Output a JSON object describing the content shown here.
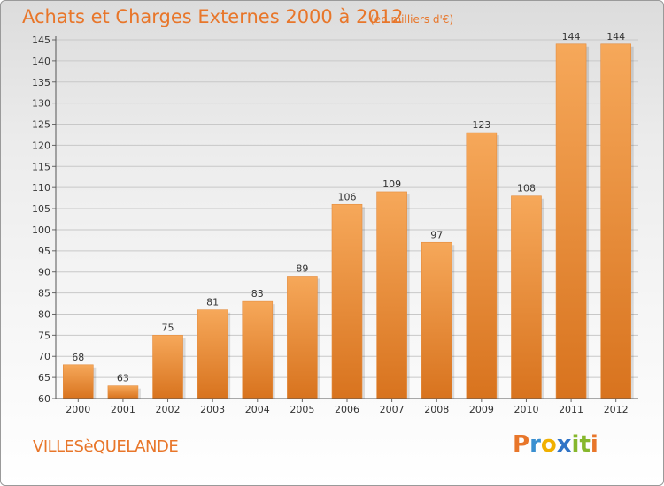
{
  "header": {
    "title": "Achats et Charges Externes 2000 à 2012",
    "unit": "(en milliers d'€)"
  },
  "footer": {
    "commune": "VILLESèQUELANDE",
    "logo_letters": [
      "P",
      "r",
      "o",
      "x",
      "i",
      "t",
      "i"
    ],
    "logo_colors": [
      "#e8762a",
      "#3a8fd0",
      "#f0b000",
      "#2f73c6",
      "#86b72c",
      "#86b72c",
      "#e8762a"
    ]
  },
  "chart_data": {
    "type": "bar",
    "title": "Achats et Charges Externes 2000 à 2012",
    "subtitle": "(en milliers d'€)",
    "xlabel": "",
    "ylabel": "",
    "categories": [
      "2000",
      "2001",
      "2002",
      "2003",
      "2004",
      "2005",
      "2006",
      "2007",
      "2008",
      "2009",
      "2010",
      "2011",
      "2012"
    ],
    "values": [
      68,
      63,
      75,
      81,
      83,
      89,
      106,
      109,
      97,
      123,
      108,
      144,
      144
    ],
    "ylim": [
      60,
      145
    ],
    "yticks": [
      60,
      65,
      70,
      75,
      80,
      85,
      90,
      95,
      100,
      105,
      110,
      115,
      120,
      125,
      130,
      135,
      140,
      145
    ],
    "grid": true,
    "legend": "none",
    "colors": {
      "bar_light": "#f6a85a",
      "bar_dark": "#d8731e",
      "text": "#333333",
      "accent": "#e8762a"
    }
  }
}
